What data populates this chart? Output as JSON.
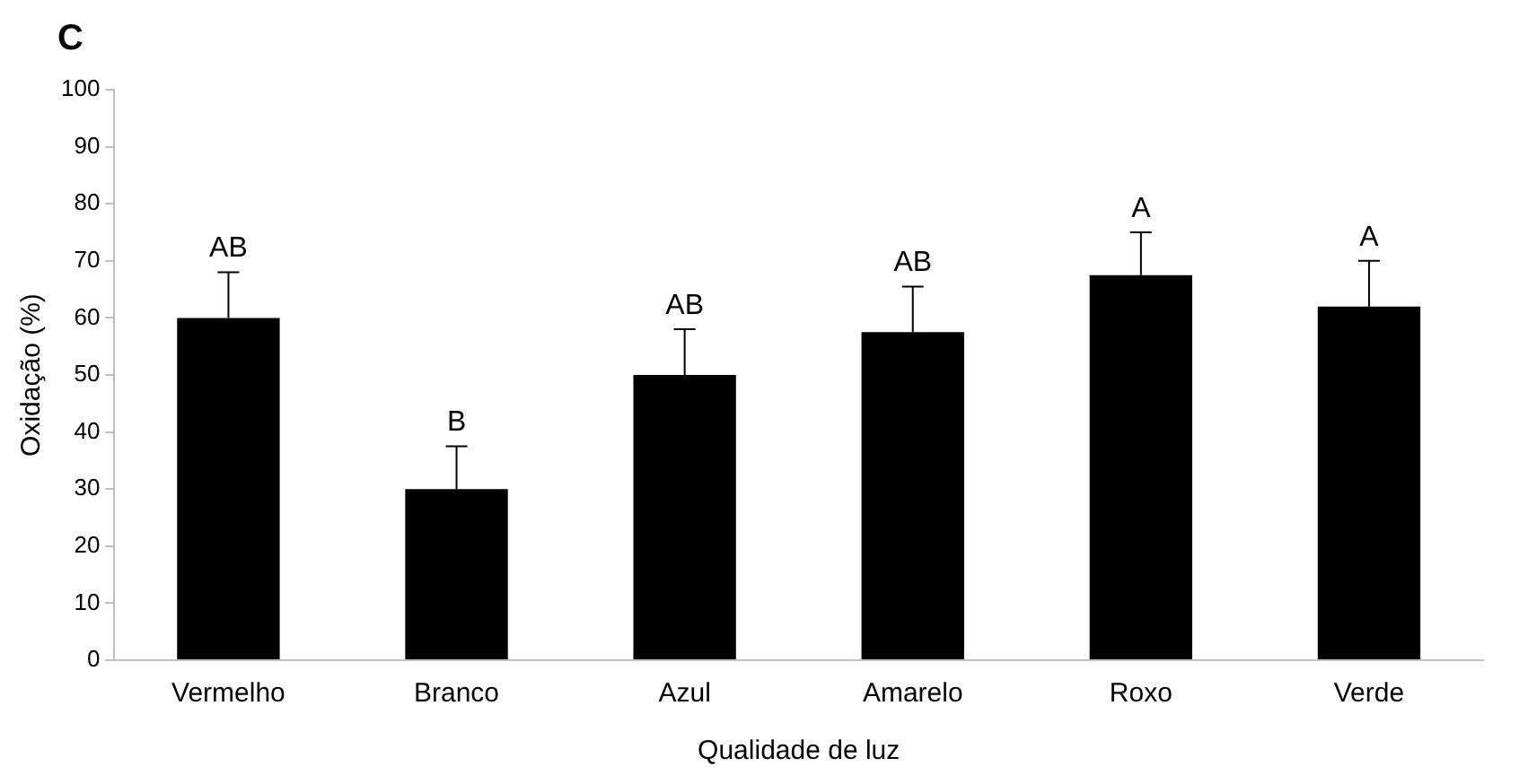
{
  "chart_data": {
    "type": "bar",
    "title": "C",
    "xlabel": "Qualidade de luz",
    "ylabel": "Oxidação (%)",
    "categories": [
      "Vermelho",
      "Branco",
      "Azul",
      "Amarelo",
      "Roxo",
      "Verde"
    ],
    "values": [
      60,
      30,
      50,
      57.5,
      67.5,
      62
    ],
    "errors": [
      [
        60,
        68
      ],
      [
        30,
        37.5
      ],
      [
        50,
        58
      ],
      [
        57.5,
        65.5
      ],
      [
        67.5,
        75
      ],
      [
        62,
        70
      ]
    ],
    "color": "#000000",
    "ylim": [
      0,
      100
    ],
    "yticks": [
      0,
      10,
      20,
      30,
      40,
      50,
      60,
      70,
      80,
      90,
      100
    ],
    "grid": false,
    "legend": false,
    "annotations": [
      {
        "text": "AB",
        "x": "Vermelho",
        "y": 68
      },
      {
        "text": "B",
        "x": "Branco",
        "y": 37.5
      },
      {
        "text": "AB",
        "x": "Azul",
        "y": 58
      },
      {
        "text": "AB",
        "x": "Amarelo",
        "y": 65.5
      },
      {
        "text": "A",
        "x": "Roxo",
        "y": 75
      },
      {
        "text": "A",
        "x": "Verde",
        "y": 70
      }
    ]
  }
}
